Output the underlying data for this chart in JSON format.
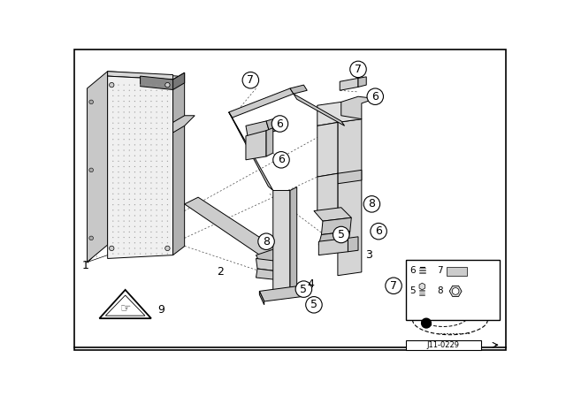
{
  "bg_color": "#ffffff",
  "border_color": "#000000",
  "fig_width": 6.4,
  "fig_height": 4.48,
  "dpi": 100,
  "diagram_id": "J11-0229",
  "lw": 0.7
}
